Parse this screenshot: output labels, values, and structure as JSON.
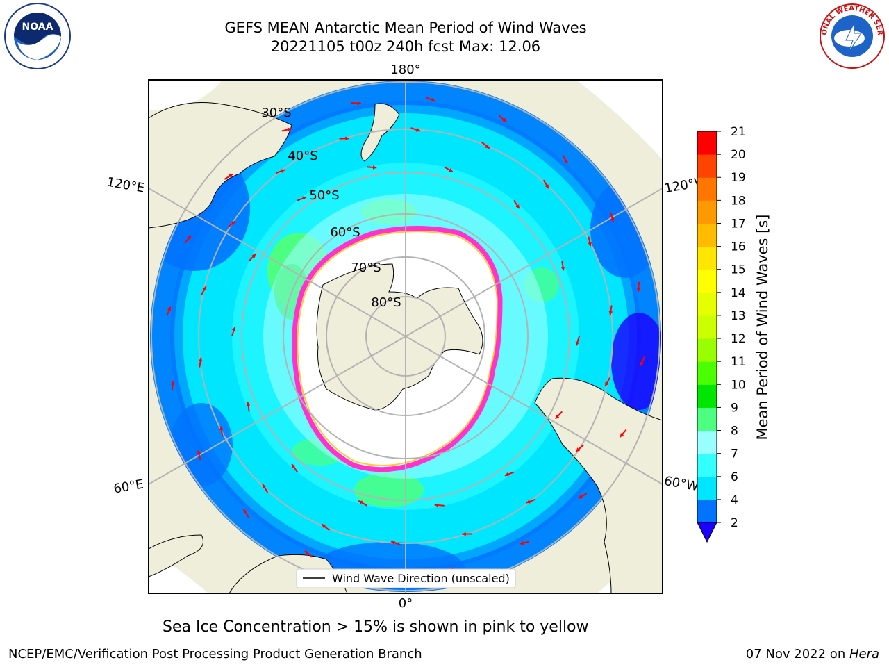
{
  "title_line1": "GEFS MEAN Antarctic Mean Period of Wind Waves",
  "title_line2": "20221105 t00z 240h fcst   Max: 12.06",
  "longitude_labels": {
    "top": "180°",
    "bottom": "0°",
    "upper_left": "120°E",
    "upper_right": "120°W",
    "lower_left": "60°E",
    "lower_right": "60°W"
  },
  "latitude_labels": [
    "30°S",
    "40°S",
    "50°S",
    "60°S",
    "70°S",
    "80°S"
  ],
  "legend_label": "Wind Wave Direction (unscaled)",
  "colorbar": {
    "label": "Mean Period of Wind Waves [s]",
    "ticks": [
      "2",
      "4",
      "6",
      "7",
      "8",
      "9",
      "10",
      "11",
      "12",
      "13",
      "14",
      "15",
      "16",
      "17",
      "18",
      "19",
      "20",
      "21"
    ],
    "colors": [
      "#0073ff",
      "#00e6ff",
      "#33ffff",
      "#99ffff",
      "#4cff80",
      "#00e600",
      "#4cff00",
      "#99ff00",
      "#ccff00",
      "#e6ff00",
      "#ffff00",
      "#ffe600",
      "#ffbb00",
      "#ff9900",
      "#ff7700",
      "#ff4400",
      "#ff0000"
    ],
    "under_color": "#1a00ff"
  },
  "caption": "Sea Ice Concentration > 15% is shown in pink to yellow",
  "footer_left": "NCEP/EMC/Verification Post Processing Product Generation Branch",
  "footer_date": "07 Nov 2022 on ",
  "footer_machine": "Hera",
  "logos": {
    "noaa_text": "NOAA",
    "nws_text": "NATIONAL WEATHER SERVICE"
  }
}
